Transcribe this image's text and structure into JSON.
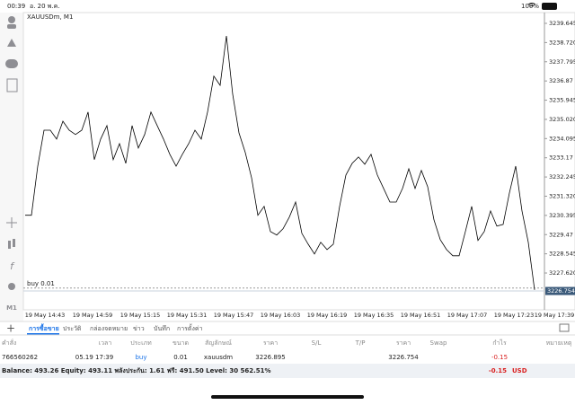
{
  "status_bar": {
    "time": "00:39",
    "date": "อ. 20 พ.ค.",
    "battery": "100%"
  },
  "toolbar": {
    "timeframe": "M1"
  },
  "chart_data": {
    "type": "line",
    "title": "XAUUSDm, M1",
    "color": "#000000",
    "values": [
      3230.4,
      3230.4,
      3232.77,
      3234.5,
      3234.5,
      3234.07,
      3234.93,
      3234.5,
      3234.29,
      3234.5,
      3235.37,
      3233.08,
      3234.07,
      3234.72,
      3233.08,
      3233.85,
      3232.9,
      3234.72,
      3233.64,
      3234.29,
      3235.37,
      3234.72,
      3234.07,
      3233.34,
      3232.77,
      3233.34,
      3233.85,
      3234.5,
      3234.07,
      3235.37,
      3237.1,
      3236.66,
      3239.04,
      3236.23,
      3234.37,
      3233.42,
      3232.21,
      3230.4,
      3230.83,
      3229.62,
      3229.45,
      3229.75,
      3230.31,
      3231.04,
      3229.53,
      3229.01,
      3228.54,
      3229.1,
      3228.75,
      3229.01,
      3230.83,
      3232.34,
      3232.9,
      3233.21,
      3232.86,
      3233.34,
      3232.34,
      3231.69,
      3231.04,
      3231.04,
      3231.69,
      3232.64,
      3231.69,
      3232.56,
      3231.78,
      3230.18,
      3229.23,
      3228.75,
      3228.45,
      3228.45,
      3229.62,
      3230.83,
      3229.19,
      3229.62,
      3230.61,
      3229.88,
      3229.96,
      3231.48,
      3232.77,
      3230.61,
      3229.1,
      3226.81
    ],
    "ylim": [
      3225.891,
      3240.164
    ],
    "yticks": [
      3239.645,
      {
        "value": 3238.72,
        "label": "3238.720"
      },
      3237.795,
      3236.87,
      3235.945,
      {
        "value": 3235.02,
        "label": "3235.020"
      },
      3234.095,
      3233.17,
      3232.245,
      {
        "value": 3231.32,
        "label": "3231.320"
      },
      3230.395,
      3229.47,
      3228.545,
      {
        "value": 3227.62,
        "label": "3227.620"
      }
    ],
    "x_labels": [
      "19 May 14:43",
      "19 May 14:59",
      "19 May 15:15",
      "19 May 15:31",
      "19 May 15:47",
      "19 May 16:03",
      "19 May 16:19",
      "19 May 16:35",
      "19 May 16:51",
      "19 May 17:07",
      "19 May 17:23",
      "19 May 17:39"
    ],
    "order_label": "buy 0.01"
  },
  "tabs": [
    "การซื้อขาย",
    "ประวัติ",
    "กล่องจดหมาย",
    "ข่าว",
    "บันทึก",
    "การตั้งค่า"
  ],
  "table": {
    "columns": [
      "คำสั่ง",
      "เวลา",
      "ประเภท",
      "ขนาด",
      "สัญลักษณ์",
      "ราคา",
      "S/L",
      "T/P",
      "ราคา",
      "Swap",
      "กำไร",
      "หมายเหตุ"
    ],
    "rows": [
      [
        "766560262",
        "05.19 17:39",
        "buy",
        "0.01",
        "xauusdm",
        "3226.895",
        null,
        null,
        "3226.754",
        null,
        "-0.15",
        null
      ]
    ]
  },
  "balance": {
    "text": "Balance: 493.26 Equity: 493.11 พลังประกัน: 1.61 ฟรี: 491.50 Level: 30 562.51%",
    "profit": "-0.15",
    "currency": "USD"
  }
}
